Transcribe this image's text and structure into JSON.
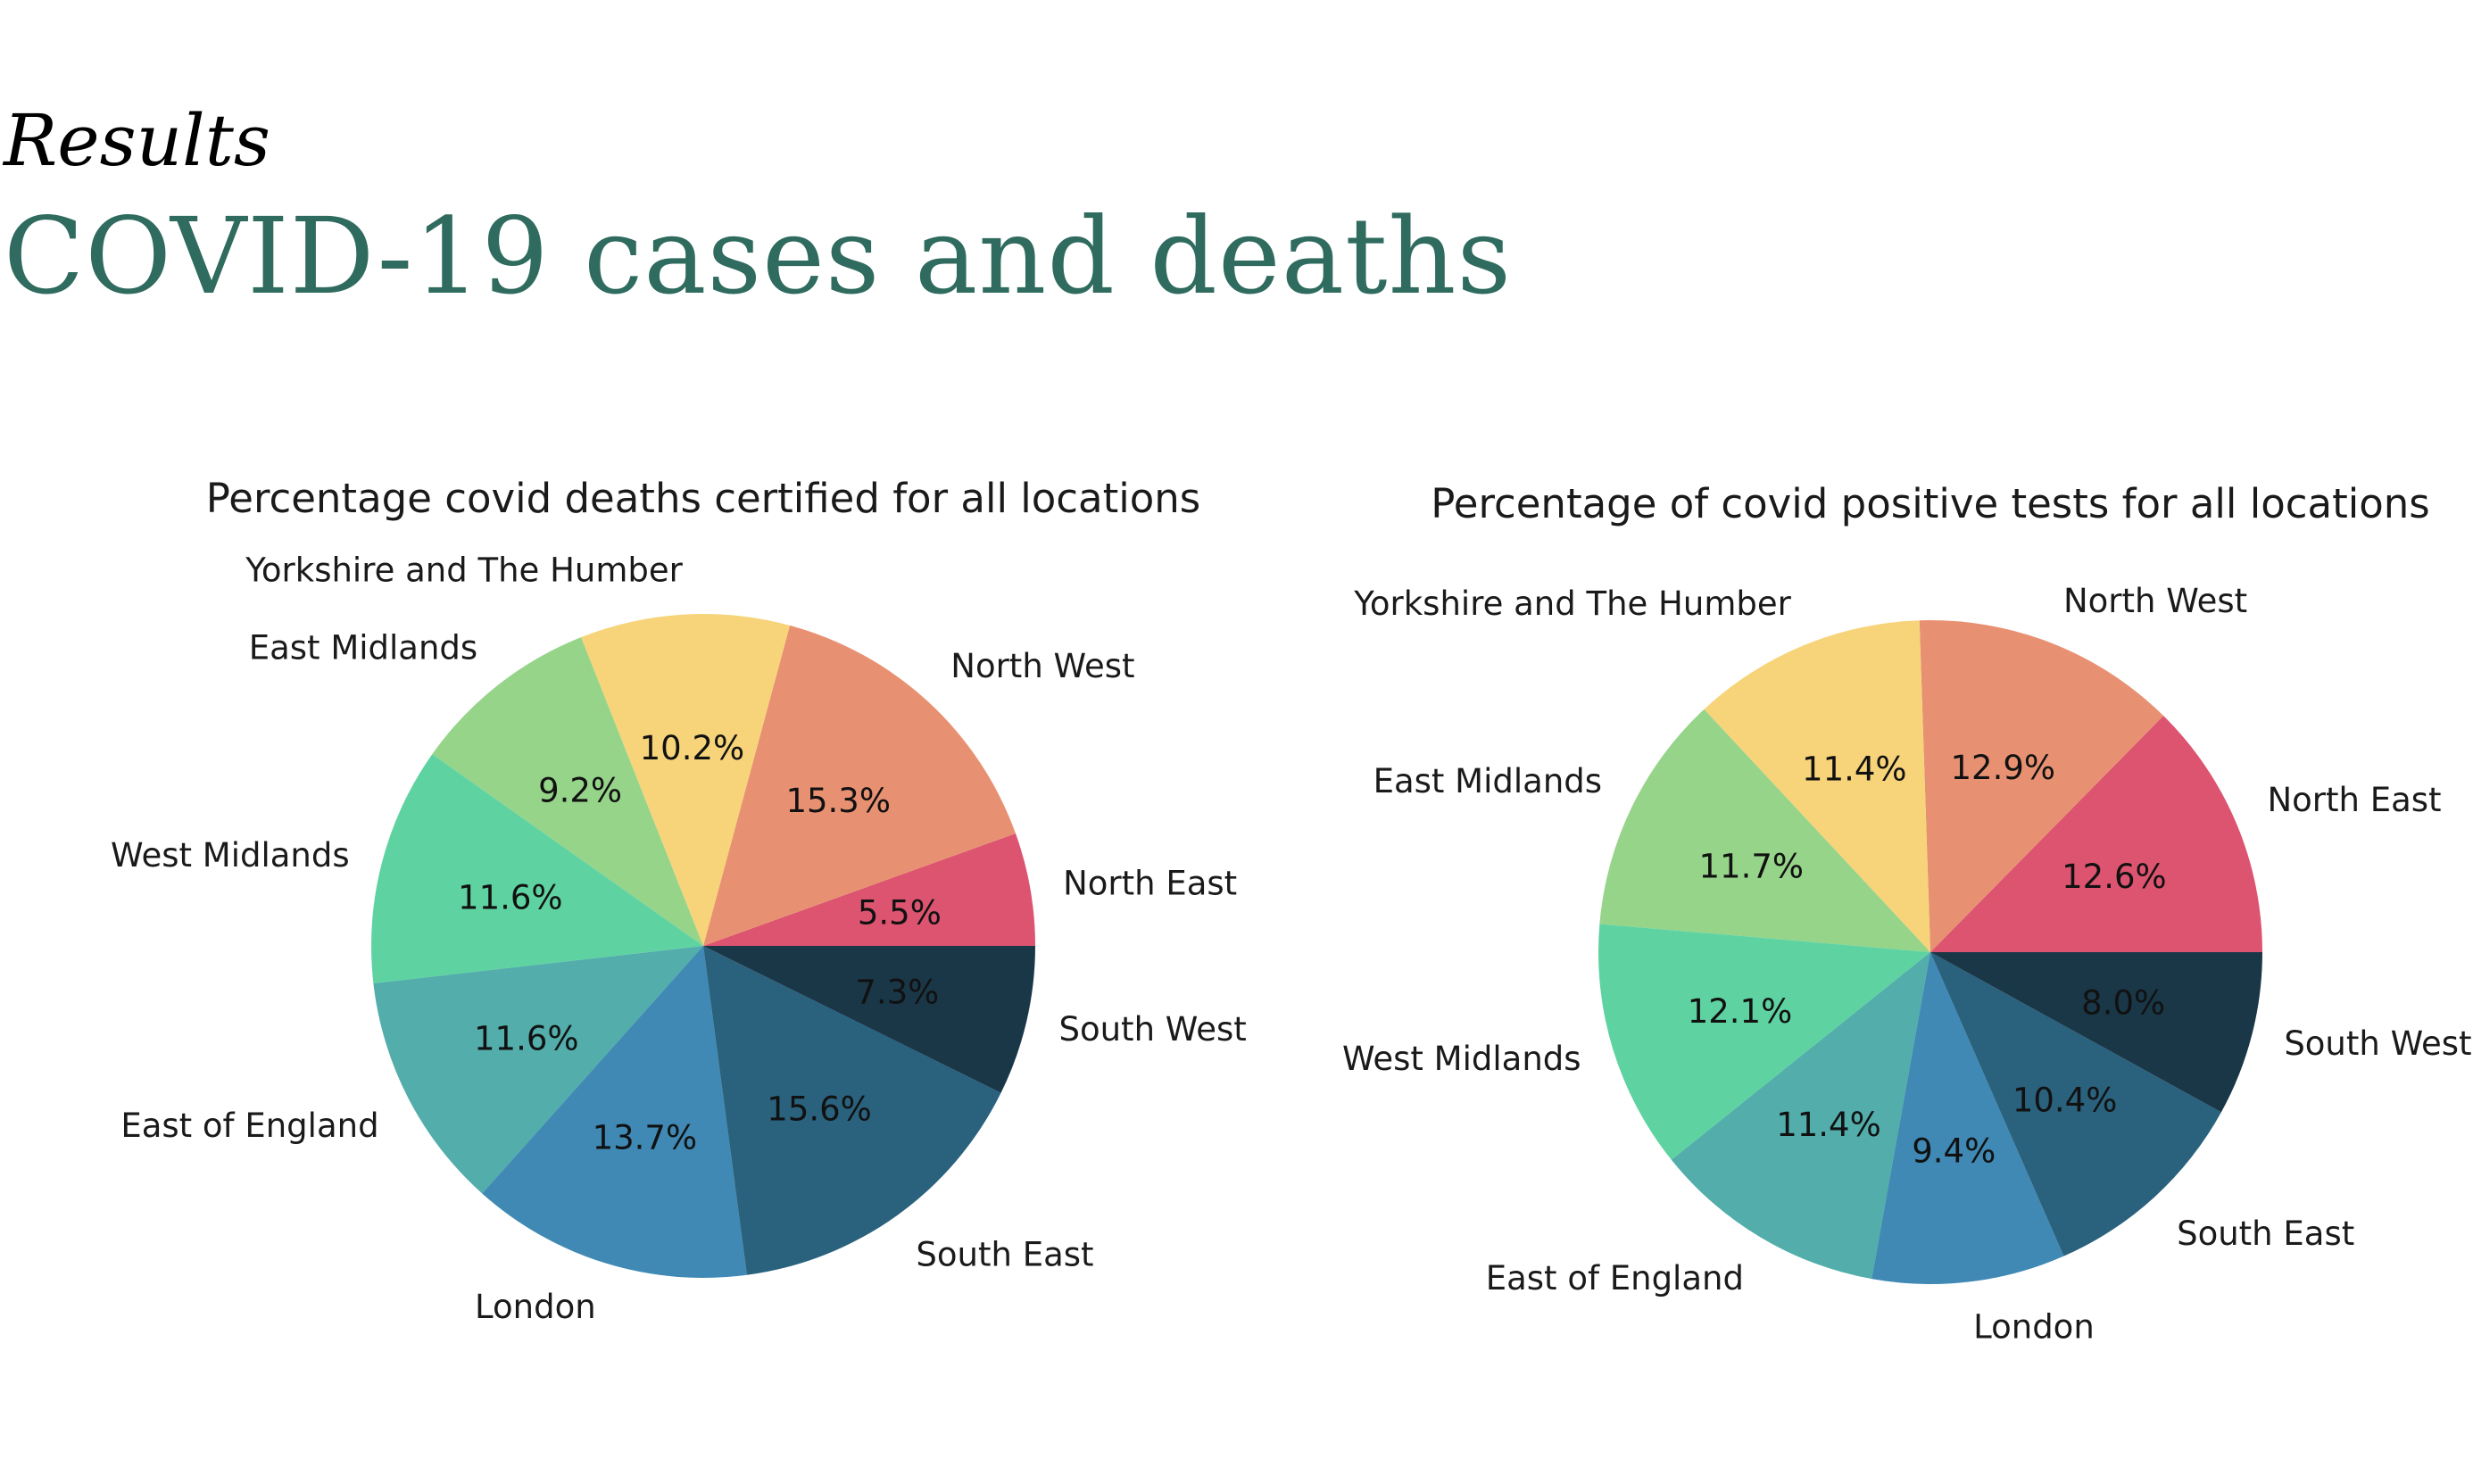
{
  "page": {
    "kicker": "Results",
    "title": "COVID-19 cases and deaths",
    "title_color": "#2f6b5e"
  },
  "chart_data": [
    {
      "type": "pie",
      "title": "Percentage covid deaths certified for all locations",
      "start_angle_deg": 0,
      "direction": "counterclockwise",
      "slices": [
        {
          "label": "North East",
          "value": 5.5,
          "pct_label": "5.5%",
          "color": "#dc5470"
        },
        {
          "label": "North West",
          "value": 15.3,
          "pct_label": "15.3%",
          "color": "#e89172"
        },
        {
          "label": "Yorkshire and The Humber",
          "value": 10.2,
          "pct_label": "10.2%",
          "color": "#f7d47a"
        },
        {
          "label": "East Midlands",
          "value": 9.2,
          "pct_label": "9.2%",
          "color": "#96d48a"
        },
        {
          "label": "West Midlands",
          "value": 11.6,
          "pct_label": "11.6%",
          "color": "#5ed3a1"
        },
        {
          "label": "East of England",
          "value": 11.6,
          "pct_label": "11.6%",
          "color": "#52adab"
        },
        {
          "label": "London",
          "value": 13.7,
          "pct_label": "13.7%",
          "color": "#3f89b4"
        },
        {
          "label": "South East",
          "value": 15.6,
          "pct_label": "15.6%",
          "color": "#2a617d"
        },
        {
          "label": "South West",
          "value": 7.3,
          "pct_label": "7.3%",
          "color": "#1a3748"
        }
      ]
    },
    {
      "type": "pie",
      "title": "Percentage of covid positive tests for all locations",
      "start_angle_deg": 0,
      "direction": "counterclockwise",
      "slices": [
        {
          "label": "North East",
          "value": 12.6,
          "pct_label": "12.6%",
          "color": "#dc5470"
        },
        {
          "label": "North West",
          "value": 12.9,
          "pct_label": "12.9%",
          "color": "#e89172"
        },
        {
          "label": "Yorkshire and The Humber",
          "value": 11.4,
          "pct_label": "11.4%",
          "color": "#f7d47a"
        },
        {
          "label": "East Midlands",
          "value": 11.7,
          "pct_label": "11.7%",
          "color": "#96d48a"
        },
        {
          "label": "West Midlands",
          "value": 12.1,
          "pct_label": "12.1%",
          "color": "#5ed3a1"
        },
        {
          "label": "East of England",
          "value": 11.4,
          "pct_label": "11.4%",
          "color": "#52adab"
        },
        {
          "label": "London",
          "value": 9.4,
          "pct_label": "9.4%",
          "color": "#3f89b4"
        },
        {
          "label": "South East",
          "value": 10.4,
          "pct_label": "10.4%",
          "color": "#2a617d"
        },
        {
          "label": "South West",
          "value": 8.0,
          "pct_label": "8.0%",
          "color": "#1a3748"
        }
      ]
    }
  ]
}
